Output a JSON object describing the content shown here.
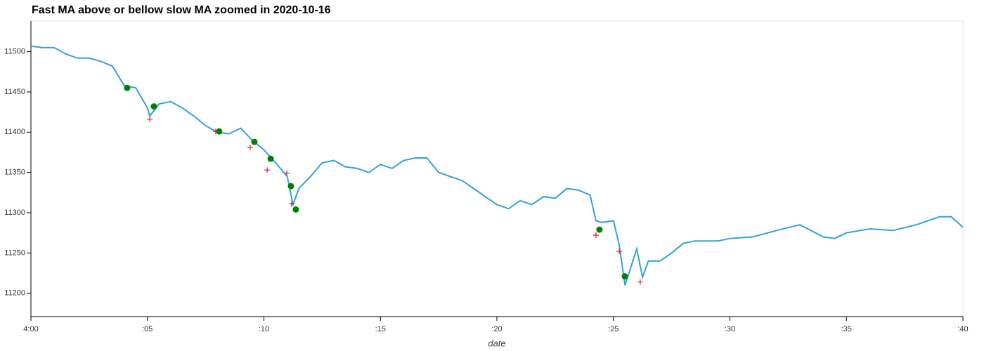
{
  "chart_data": {
    "type": "line",
    "title": "Fast MA above or bellow slow MA zoomed in 2020-10-16",
    "x_label": "date",
    "xlim": [
      0,
      40
    ],
    "xticks": [
      {
        "value": 0,
        "label": "4:00"
      },
      {
        "value": 5,
        "label": ":05"
      },
      {
        "value": 10,
        "label": ":10"
      },
      {
        "value": 15,
        "label": ":15"
      },
      {
        "value": 20,
        "label": ":20"
      },
      {
        "value": 25,
        "label": ":25"
      },
      {
        "value": 30,
        "label": ":30"
      },
      {
        "value": 35,
        "label": ":35"
      },
      {
        "value": 40,
        "label": ":40"
      }
    ],
    "ylim": [
      11171,
      11538
    ],
    "yticks": [
      11200,
      11250,
      11300,
      11350,
      11400,
      11450,
      11500
    ],
    "series": [
      {
        "type": "line",
        "color": "#30a2da",
        "x": [
          0,
          0.5,
          1,
          1.5,
          2,
          2.5,
          3,
          3.5,
          4,
          4.5,
          5,
          5.1,
          5.5,
          6,
          6.5,
          7,
          7.5,
          8,
          8.5,
          9,
          9.5,
          10,
          10.5,
          11,
          11.25,
          11.5,
          12,
          12.5,
          13,
          13.5,
          14,
          14.5,
          15,
          15.5,
          16,
          16.5,
          17,
          17.5,
          18,
          18.5,
          19,
          19.5,
          20,
          20.5,
          21,
          21.5,
          22,
          22.5,
          23,
          23.5,
          24,
          24.25,
          24.5,
          25,
          25.25,
          25.5,
          26,
          26.25,
          26.5,
          27,
          27.5,
          28,
          28.5,
          29,
          29.5,
          30,
          31,
          32,
          33,
          34,
          34.5,
          35,
          36,
          37,
          38,
          39,
          39.5,
          40
        ],
        "values": [
          11507,
          11505,
          11505,
          11497,
          11492,
          11492,
          11488,
          11482,
          11458,
          11455,
          11430,
          11420,
          11435,
          11438,
          11430,
          11420,
          11408,
          11400,
          11398,
          11405,
          11390,
          11378,
          11362,
          11345,
          11310,
          11330,
          11345,
          11362,
          11365,
          11357,
          11355,
          11350,
          11360,
          11355,
          11365,
          11368,
          11368,
          11350,
          11345,
          11340,
          11330,
          11320,
          11310,
          11305,
          11315,
          11310,
          11320,
          11318,
          11330,
          11328,
          11322,
          11290,
          11288,
          11290,
          11260,
          11210,
          11255,
          11220,
          11240,
          11240,
          11250,
          11262,
          11265,
          11265,
          11265,
          11268,
          11270,
          11278,
          11285,
          11270,
          11268,
          11275,
          11280,
          11278,
          11285,
          11295,
          11295,
          11282
        ]
      },
      {
        "type": "scatter",
        "marker": "circle",
        "color": "#008000",
        "x": [
          4.13,
          5.28,
          8.08,
          9.59,
          10.29,
          11.16,
          11.37,
          24.4,
          25.49
        ],
        "values": [
          11455,
          11432,
          11401,
          11388,
          11367,
          11333,
          11304,
          11279,
          11221
        ]
      },
      {
        "type": "scatter",
        "marker": "plus",
        "color": "#e0203a",
        "x": [
          5.1,
          7.93,
          9.41,
          10.14,
          10.98,
          11.19,
          24.25,
          25.25,
          26.15
        ],
        "values": [
          11416,
          11401,
          11381,
          11353,
          11349,
          11311,
          11272,
          11252,
          11214
        ]
      }
    ]
  }
}
